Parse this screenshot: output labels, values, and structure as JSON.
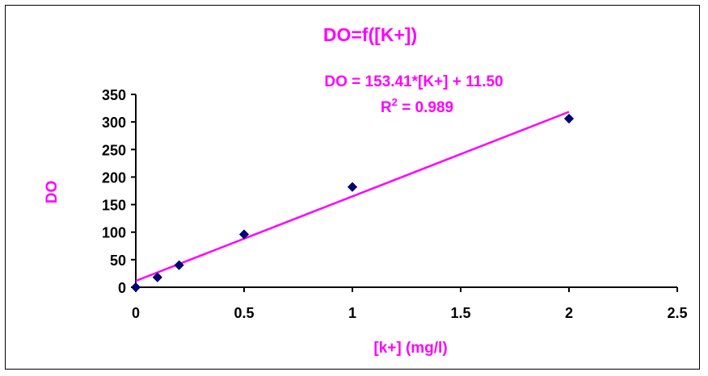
{
  "chart_data": {
    "type": "scatter",
    "title": "DO=f([K+])",
    "xlabel": "[k+] (mg/l)",
    "ylabel": "DO",
    "xlim": [
      0,
      2.5
    ],
    "ylim": [
      0,
      350
    ],
    "x_ticks": [
      "0",
      "0.5",
      "1",
      "1.5",
      "2",
      "2.5"
    ],
    "y_ticks": [
      "0",
      "50",
      "100",
      "150",
      "200",
      "250",
      "300",
      "350"
    ],
    "grid": false,
    "legend": "none",
    "series": [
      {
        "x": [
          0,
          0.1,
          0.2,
          0.5,
          1,
          2
        ],
        "y": [
          0,
          18,
          40,
          96,
          182,
          306
        ],
        "marker": "diamond",
        "color": "#000080"
      }
    ],
    "trendline": {
      "slope": 153.41,
      "intercept": 11.5,
      "x_range": [
        0,
        2
      ],
      "color": "#ff00ff"
    },
    "annotations": {
      "equation": "DO = 153.41*[K+] + 11.50",
      "r2_prefix": "R",
      "r2_exp": "2",
      "r2_suffix": " = 0.989"
    }
  }
}
